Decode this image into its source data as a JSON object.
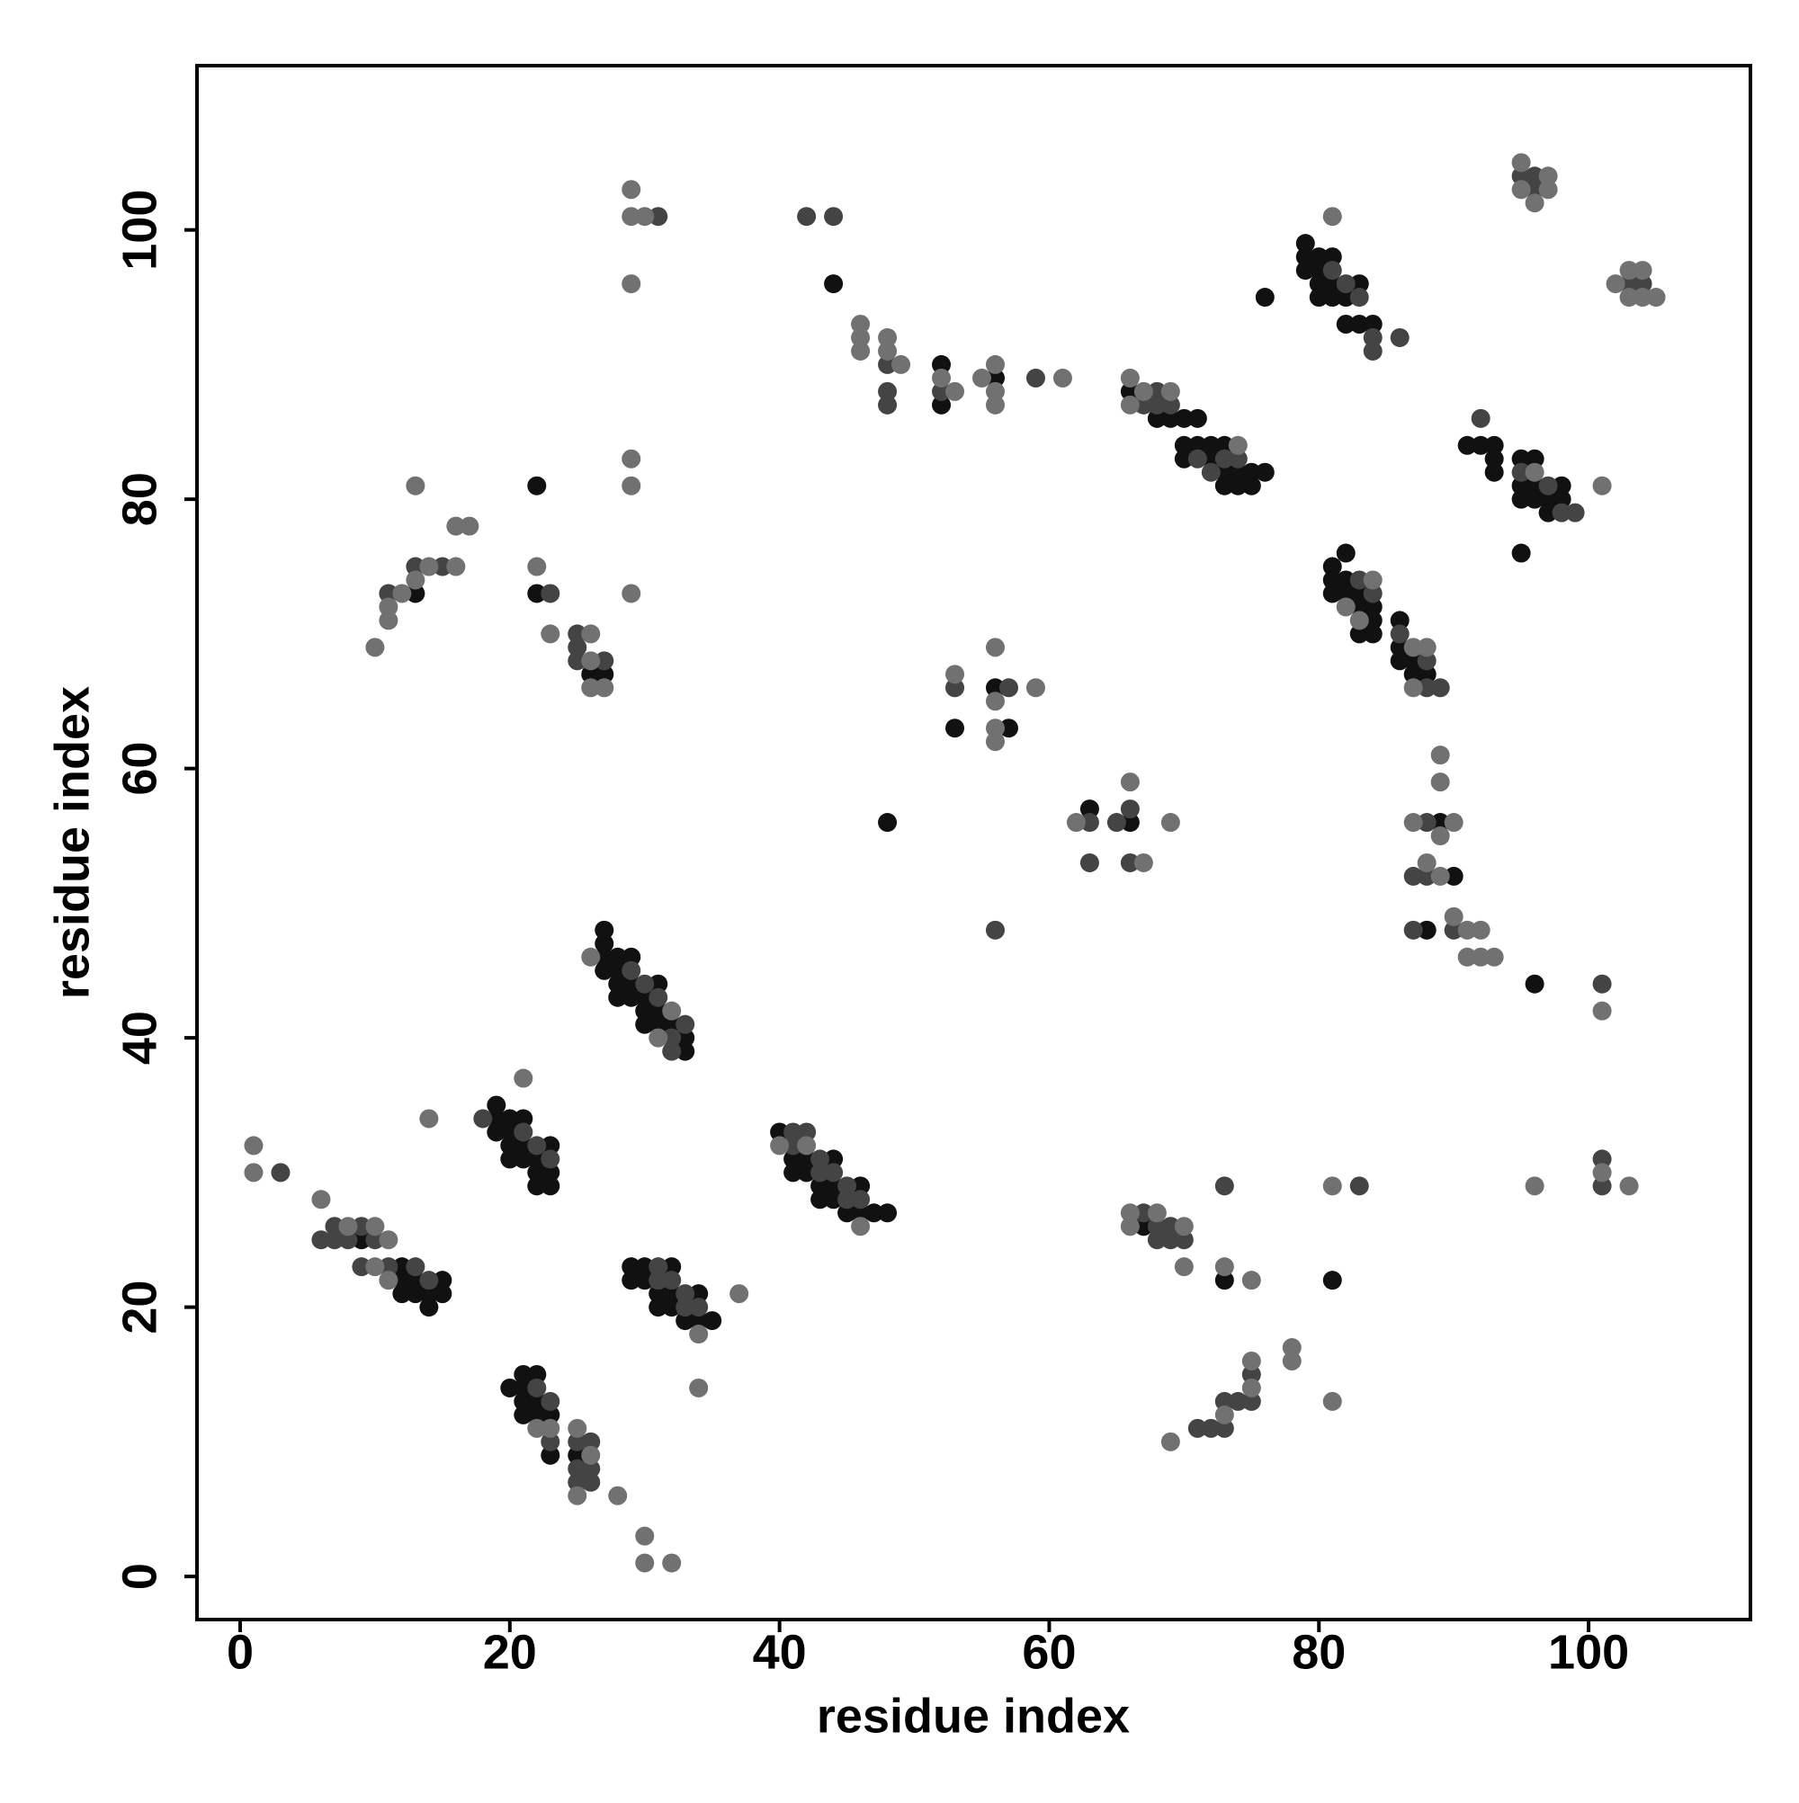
{
  "chart_data": {
    "type": "scatter",
    "xlabel": "residue index",
    "ylabel": "residue index",
    "xlim": [
      -3.2,
      112
    ],
    "ylim": [
      -3.2,
      112.2
    ],
    "xticks": [
      0,
      20,
      40,
      60,
      80,
      100
    ],
    "yticks": [
      0,
      20,
      40,
      60,
      80,
      100
    ],
    "series": [
      {
        "color": "#111111",
        "x": [
          9,
          12,
          12,
          12,
          13,
          13,
          14,
          14,
          15,
          15,
          19,
          19,
          19,
          20,
          20,
          20,
          20,
          21,
          21,
          21,
          22,
          22,
          22,
          23,
          23,
          23,
          29,
          29,
          30,
          30,
          31,
          31,
          32,
          32,
          32,
          33,
          34,
          34,
          35,
          20,
          21,
          21,
          21,
          21,
          22,
          22,
          22,
          23,
          23,
          25,
          27,
          27,
          27,
          27,
          28,
          28,
          28,
          28,
          29,
          29,
          29,
          30,
          30,
          30,
          31,
          31,
          31,
          32,
          33,
          33,
          40,
          41,
          41,
          42,
          42,
          43,
          43,
          44,
          44,
          44,
          45,
          46,
          46,
          47,
          48,
          13,
          22,
          22,
          26,
          27,
          44,
          52,
          52,
          56,
          53,
          56,
          57,
          48,
          63,
          66,
          66,
          68,
          69,
          70,
          71,
          70,
          70,
          71,
          72,
          72,
          73,
          73,
          73,
          74,
          74,
          75,
          75,
          76,
          76,
          79,
          79,
          79,
          80,
          80,
          80,
          80,
          81,
          81,
          81,
          82,
          82,
          83,
          83,
          84,
          91,
          92,
          93,
          93,
          93,
          95,
          95,
          95,
          95,
          96,
          96,
          96,
          97,
          97,
          98,
          98,
          82,
          81,
          81,
          81,
          82,
          82,
          83,
          83,
          83,
          84,
          84,
          84,
          86,
          86,
          86,
          87,
          87,
          88,
          89,
          90,
          88,
          96,
          67,
          73,
          81
        ],
        "values": [
          25,
          23,
          22,
          21,
          22,
          21,
          21,
          20,
          22,
          21,
          35,
          34,
          33,
          34,
          33,
          32,
          31,
          34,
          32,
          31,
          31,
          30,
          29,
          32,
          30,
          29,
          23,
          22,
          23,
          22,
          21,
          20,
          23,
          21,
          20,
          19,
          21,
          19,
          19,
          14,
          15,
          14,
          13,
          12,
          15,
          13,
          12,
          12,
          9,
          9,
          48,
          47,
          46,
          45,
          46,
          45,
          44,
          43,
          46,
          44,
          43,
          43,
          42,
          41,
          44,
          42,
          41,
          41,
          40,
          39,
          33,
          31,
          30,
          31,
          30,
          29,
          28,
          31,
          29,
          28,
          27,
          29,
          27,
          27,
          27,
          73,
          81,
          73,
          67,
          67,
          96,
          90,
          87,
          89,
          63,
          66,
          63,
          56,
          57,
          56,
          88,
          86,
          86,
          86,
          86,
          84,
          83,
          84,
          84,
          83,
          84,
          82,
          81,
          82,
          81,
          82,
          81,
          82,
          95,
          99,
          98,
          97,
          98,
          97,
          96,
          95,
          98,
          96,
          95,
          95,
          93,
          96,
          93,
          93,
          84,
          84,
          84,
          83,
          82,
          83,
          81,
          80,
          76,
          83,
          81,
          80,
          80,
          79,
          81,
          80,
          76,
          75,
          74,
          73,
          74,
          73,
          73,
          72,
          70,
          72,
          71,
          70,
          71,
          69,
          68,
          68,
          67,
          67,
          56,
          52,
          48,
          44,
          26,
          22,
          22
        ]
      },
      {
        "color": "#444444",
        "x": [
          3,
          6,
          7,
          7,
          8,
          9,
          10,
          9,
          11,
          13,
          14,
          18,
          21,
          22,
          23,
          31,
          31,
          32,
          33,
          33,
          34,
          22,
          23,
          23,
          25,
          25,
          25,
          26,
          26,
          26,
          29,
          30,
          31,
          32,
          32,
          33,
          41,
          41,
          42,
          43,
          43,
          44,
          45,
          45,
          46,
          11,
          13,
          15,
          23,
          25,
          25,
          25,
          27,
          31,
          42,
          44,
          48,
          48,
          48,
          52,
          59,
          53,
          57,
          56,
          63,
          63,
          65,
          66,
          66,
          67,
          68,
          68,
          69,
          71,
          72,
          73,
          74,
          81,
          82,
          83,
          84,
          84,
          86,
          92,
          95,
          97,
          98,
          99,
          83,
          84,
          86,
          88,
          88,
          89,
          88,
          87,
          88,
          87,
          90,
          101,
          67,
          68,
          68,
          69,
          69,
          70,
          73,
          83,
          101,
          101,
          71,
          72,
          73,
          73,
          74,
          75,
          75,
          95,
          96,
          96,
          103,
          104
        ],
        "values": [
          30,
          25,
          26,
          25,
          25,
          26,
          25,
          23,
          23,
          23,
          22,
          34,
          33,
          32,
          31,
          23,
          22,
          22,
          21,
          20,
          20,
          14,
          13,
          10,
          10,
          8,
          7,
          10,
          8,
          7,
          45,
          44,
          43,
          40,
          39,
          41,
          33,
          32,
          33,
          31,
          30,
          30,
          29,
          28,
          28,
          73,
          75,
          75,
          73,
          70,
          69,
          68,
          68,
          101,
          101,
          101,
          90,
          88,
          87,
          88,
          89,
          66,
          66,
          48,
          56,
          53,
          56,
          57,
          53,
          87,
          88,
          87,
          87,
          83,
          82,
          83,
          83,
          97,
          96,
          95,
          92,
          91,
          92,
          86,
          82,
          81,
          79,
          79,
          74,
          73,
          70,
          68,
          66,
          66,
          56,
          52,
          52,
          48,
          48,
          44,
          27,
          26,
          25,
          26,
          25,
          25,
          29,
          29,
          31,
          29,
          11,
          11,
          13,
          11,
          13,
          15,
          13,
          104,
          104,
          103,
          96,
          96
        ]
      },
      {
        "color": "#717171",
        "x": [
          1,
          1,
          6,
          8,
          10,
          11,
          10,
          11,
          14,
          21,
          34,
          37,
          34,
          22,
          23,
          25,
          25,
          26,
          28,
          30,
          30,
          32,
          26,
          31,
          32,
          40,
          42,
          46,
          10,
          11,
          11,
          12,
          13,
          13,
          14,
          16,
          16,
          17,
          22,
          23,
          26,
          26,
          26,
          27,
          29,
          29,
          30,
          29,
          29,
          29,
          29,
          46,
          46,
          46,
          48,
          48,
          49,
          52,
          53,
          55,
          56,
          56,
          56,
          61,
          53,
          56,
          56,
          56,
          56,
          59,
          62,
          66,
          67,
          69,
          66,
          66,
          67,
          69,
          74,
          81,
          96,
          101,
          95,
          95,
          96,
          97,
          97,
          102,
          103,
          103,
          104,
          104,
          105,
          82,
          83,
          84,
          87,
          87,
          88,
          89,
          89,
          87,
          89,
          90,
          88,
          89,
          90,
          91,
          92,
          91,
          92,
          93,
          101,
          66,
          66,
          68,
          70,
          70,
          73,
          75,
          81,
          96,
          101,
          103,
          69,
          73,
          75,
          75,
          78,
          78,
          81
        ],
        "values": [
          32,
          30,
          28,
          26,
          26,
          25,
          23,
          22,
          34,
          37,
          18,
          21,
          14,
          11,
          11,
          11,
          6,
          9,
          6,
          3,
          1,
          1,
          46,
          40,
          42,
          32,
          32,
          26,
          69,
          72,
          71,
          73,
          81,
          74,
          75,
          78,
          75,
          78,
          75,
          70,
          70,
          68,
          66,
          66,
          103,
          101,
          101,
          96,
          83,
          81,
          73,
          93,
          92,
          91,
          92,
          91,
          90,
          89,
          88,
          89,
          90,
          88,
          87,
          89,
          67,
          69,
          65,
          63,
          62,
          66,
          56,
          59,
          53,
          56,
          89,
          87,
          88,
          88,
          84,
          101,
          82,
          81,
          105,
          103,
          102,
          104,
          103,
          96,
          97,
          95,
          97,
          95,
          95,
          72,
          71,
          74,
          69,
          66,
          69,
          61,
          59,
          56,
          55,
          56,
          53,
          52,
          49,
          48,
          48,
          46,
          46,
          46,
          42,
          27,
          26,
          27,
          26,
          23,
          23,
          22,
          29,
          29,
          30,
          29,
          10,
          12,
          16,
          14,
          17,
          16,
          13
        ]
      }
    ]
  }
}
